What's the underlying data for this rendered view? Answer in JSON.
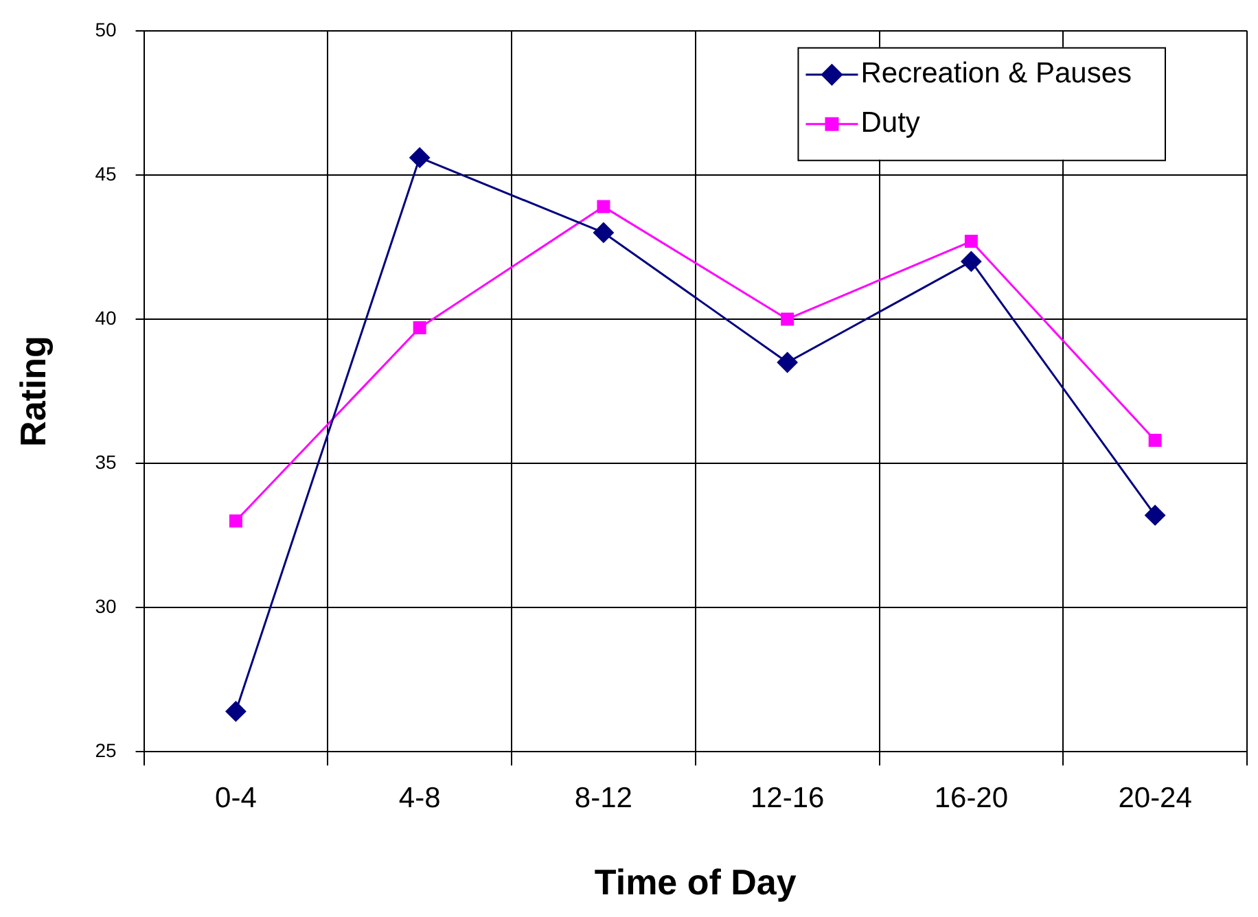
{
  "chart_data": {
    "type": "line",
    "xlabel": "Time of Day",
    "ylabel": "Rating",
    "categories": [
      "0-4",
      "4-8",
      "8-12",
      "12-16",
      "16-20",
      "20-24"
    ],
    "series": [
      {
        "name": "Recreation & Pauses",
        "color": "#000080",
        "marker": "diamond",
        "values": [
          26.4,
          45.6,
          43.0,
          38.5,
          42.0,
          33.2
        ]
      },
      {
        "name": "Duty",
        "color": "#ff00ff",
        "marker": "square",
        "values": [
          33.0,
          39.7,
          43.9,
          40.0,
          42.7,
          35.8
        ]
      }
    ],
    "ylim": [
      25,
      50
    ],
    "yticks": [
      25,
      30,
      35,
      40,
      45,
      50
    ],
    "grid": true,
    "legend": "top right",
    "line_style": "solid"
  }
}
